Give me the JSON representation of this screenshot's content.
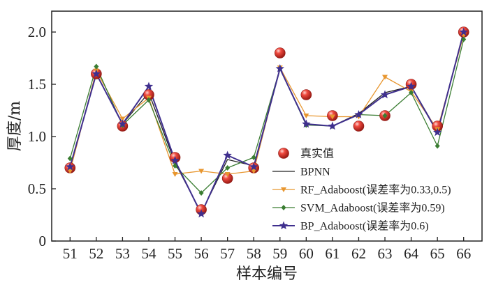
{
  "chart_data": {
    "type": "line",
    "title": "",
    "xlabel": "样本编号",
    "ylabel": "厚度/m",
    "x": [
      51,
      52,
      53,
      54,
      55,
      56,
      57,
      58,
      59,
      60,
      61,
      62,
      63,
      64,
      65,
      66
    ],
    "xlim": [
      50.3,
      66.7
    ],
    "ylim": [
      0,
      2.2
    ],
    "yticks": [
      0,
      0.5,
      1.0,
      1.5,
      2.0
    ],
    "ytick_labels": [
      "0",
      "0.5",
      "1.0",
      "1.5",
      "2.0"
    ],
    "grid": false,
    "legend_position": "lower-right",
    "series": [
      {
        "name": "真实值",
        "style": "marker-only",
        "marker": "circle",
        "color": "#d62b23",
        "values": [
          0.7,
          1.6,
          1.1,
          1.4,
          0.8,
          0.3,
          0.6,
          0.7,
          1.8,
          1.4,
          1.2,
          1.1,
          1.2,
          1.5,
          1.1,
          2.0
        ]
      },
      {
        "name": "BPNN",
        "style": "line",
        "marker": "none",
        "color": "#222222",
        "values": [
          0.7,
          1.6,
          1.12,
          1.42,
          0.75,
          0.27,
          0.78,
          0.72,
          1.65,
          1.12,
          1.1,
          1.22,
          1.42,
          1.48,
          1.05,
          2.0
        ]
      },
      {
        "name": "RF_Adaboost(误差率为0.33,0.5)",
        "style": "line",
        "marker": "triangle-down",
        "color": "#e8962e",
        "values": [
          0.67,
          1.63,
          1.17,
          1.37,
          0.64,
          0.67,
          0.64,
          0.67,
          1.66,
          1.2,
          1.19,
          1.19,
          1.57,
          1.43,
          1.07,
          1.97
        ]
      },
      {
        "name": "SVM_Adaboost(误差率为0.59)",
        "style": "line",
        "marker": "diamond",
        "color": "#3a7d32",
        "values": [
          0.79,
          1.67,
          1.11,
          1.35,
          0.72,
          0.46,
          0.7,
          0.8,
          1.65,
          1.11,
          1.1,
          1.21,
          1.2,
          1.42,
          0.91,
          1.93
        ]
      },
      {
        "name": "BP_Adaboost(误差率为0.6)",
        "style": "line",
        "marker": "star",
        "color": "#3f2f8e",
        "values": [
          0.71,
          1.6,
          1.12,
          1.48,
          0.77,
          0.26,
          0.82,
          0.71,
          1.65,
          1.12,
          1.1,
          1.21,
          1.4,
          1.48,
          1.04,
          2.0
        ]
      }
    ]
  }
}
